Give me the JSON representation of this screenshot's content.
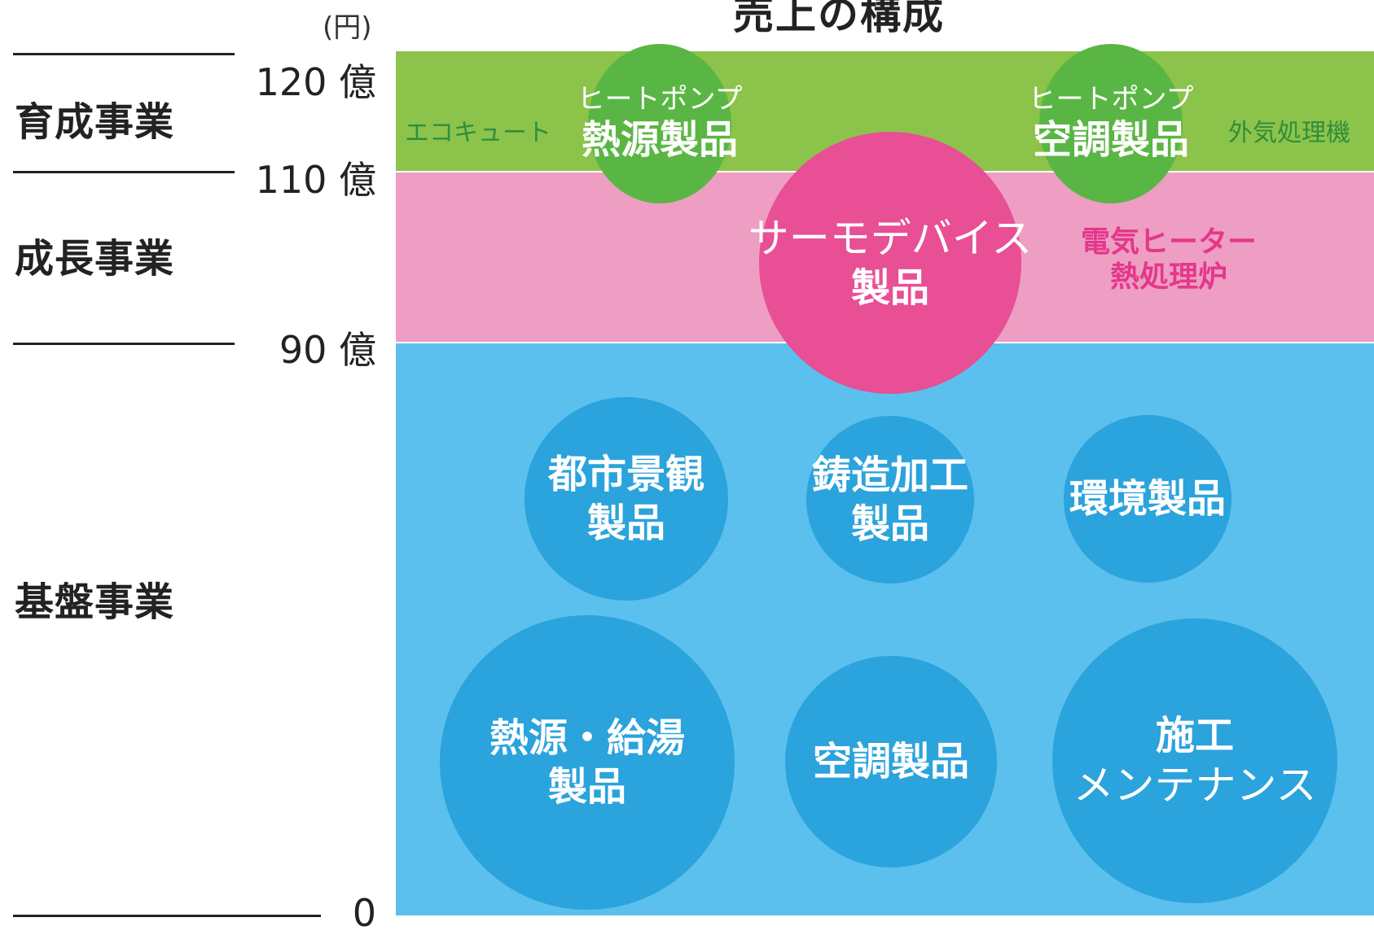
{
  "title": "売上の構成",
  "unit": "(円)",
  "ticks": {
    "t120": "120 億",
    "t110": "110 億",
    "t90": "90 億",
    "t0": "0"
  },
  "segments": {
    "nurture": "育成事業",
    "growth": "成長事業",
    "base": "基盤事業"
  },
  "bands": {
    "nurture": {
      "from": 110,
      "to": 120,
      "color": "#8cc34b"
    },
    "growth": {
      "from": 90,
      "to": 110,
      "color": "#ee9ec2"
    },
    "base": {
      "from": 0,
      "to": 90,
      "color": "#5bc0ee"
    }
  },
  "nurture_items": {
    "side_left": "エコキュート",
    "side_right": "外気処理機",
    "heat_source": {
      "line1": "ヒートポンプ",
      "line2": "熱源製品"
    },
    "air_conditioning": {
      "line1": "ヒートポンプ",
      "line2": "空調製品"
    }
  },
  "growth_items": {
    "thermo": {
      "line1": "サーモデバイス",
      "line2": "製品"
    },
    "side_right": {
      "line1": "電気ヒーター",
      "line2": "熱処理炉"
    }
  },
  "base_items": {
    "urban": {
      "line1": "都市景観",
      "line2": "製品"
    },
    "casting": {
      "line1": "鋳造加工",
      "line2": "製品"
    },
    "environment": {
      "line1": "環境製品"
    },
    "heat_water": {
      "line1": "熱源・給湯",
      "line2": "製品"
    },
    "aircon": {
      "line1": "空調製品"
    },
    "construction": {
      "line1": "施工",
      "line2": "メンテナンス"
    }
  },
  "colors": {
    "green_band": "#8cc34b",
    "green_circle": "#5ab644",
    "pink_band": "#ee9ec2",
    "pink_circle": "#e84f95",
    "blue_band": "#5bc0ee",
    "blue_circle": "#2ba3dc"
  }
}
